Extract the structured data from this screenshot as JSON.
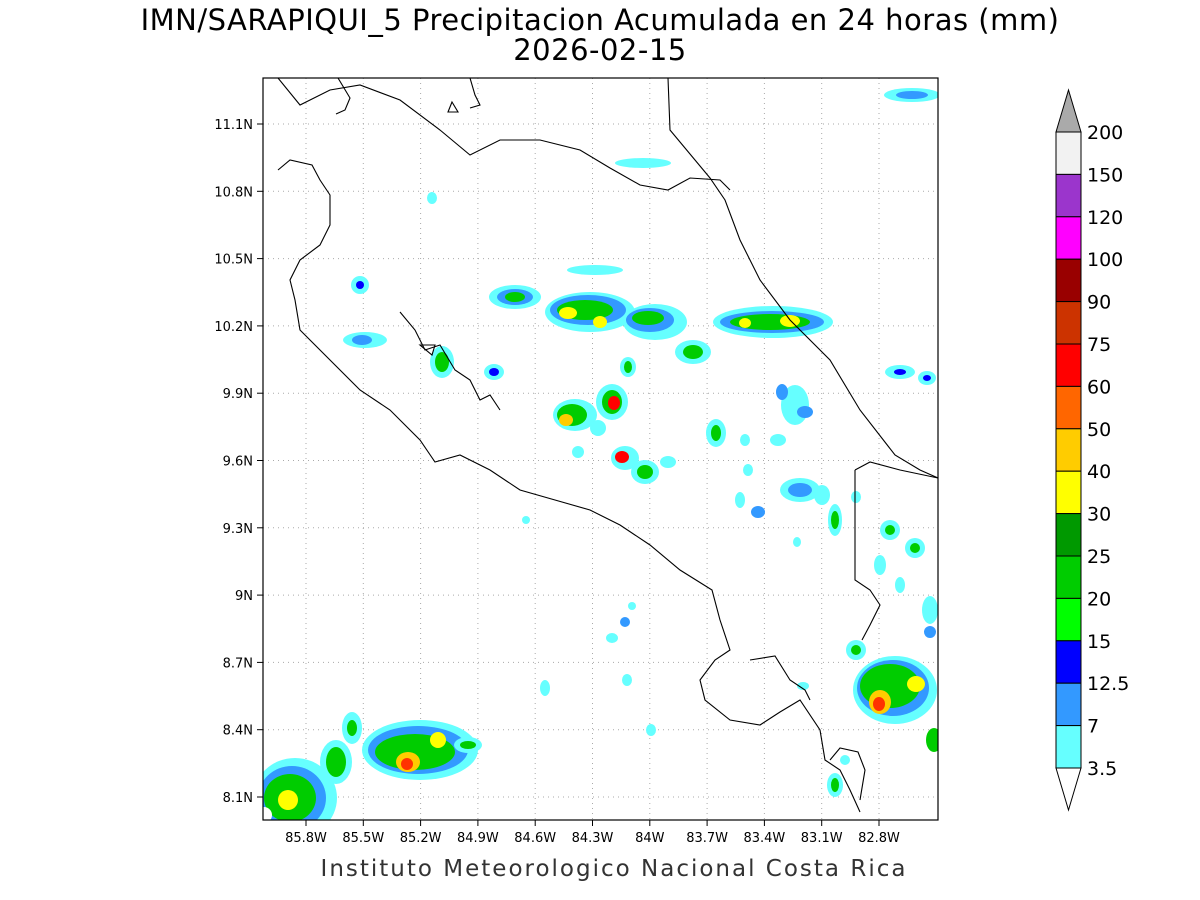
{
  "title_line1": "IMN/SARAPIQUI_5 Precipitacion Acumulada en 24 horas (mm)",
  "title_line2": "2026-02-15",
  "footer": "Instituto Meteorologico Nacional Costa Rica",
  "lat_labels": [
    "11.1N",
    "10.8N",
    "10.5N",
    "10.2N",
    "9.9N",
    "9.6N",
    "9.3N",
    "9N",
    "8.7N",
    "8.4N",
    "8.1N"
  ],
  "lon_labels": [
    "85.8W",
    "85.5W",
    "85.2W",
    "84.9W",
    "84.6W",
    "84.3W",
    "84W",
    "83.7W",
    "83.4W",
    "83.1W",
    "82.8W"
  ],
  "colorbar": {
    "labels": [
      "200",
      "150",
      "120",
      "100",
      "90",
      "75",
      "60",
      "50",
      "40",
      "30",
      "25",
      "20",
      "15",
      "12.5",
      "7",
      "3.5"
    ],
    "colors": [
      "#f2f2f2",
      "#9b35cc",
      "#ff00ff",
      "#990000",
      "#cc3300",
      "#ff0000",
      "#ff6600",
      "#ffcc00",
      "#ffff00",
      "#009900",
      "#00cc00",
      "#00ff00",
      "#0000ff",
      "#3399ff",
      "#66ffff"
    ],
    "over_color": "#aaaaaa",
    "under_color": "#ffffff"
  }
}
